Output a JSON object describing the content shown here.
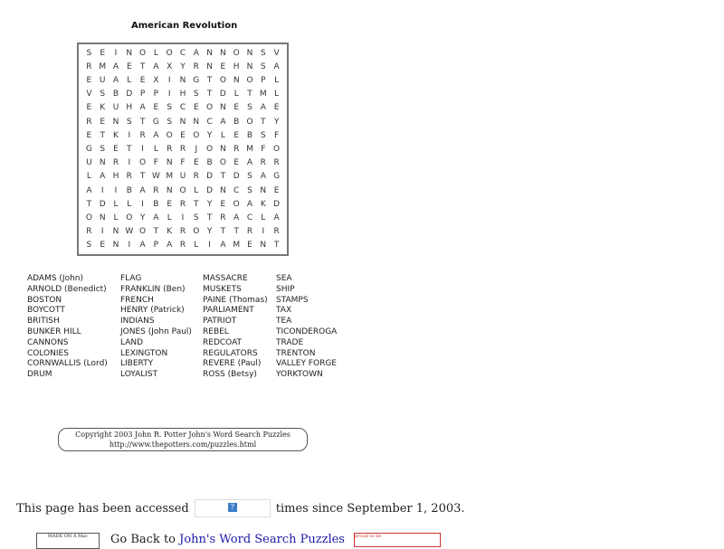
{
  "title": "American Revolution",
  "grid": [
    "SEINOLOCANNONSV",
    "RMAETAXYRNEHNSA",
    "EUALEXINGTONOPL",
    "VSBDPPIHSTDLTML",
    "EKUHAESCEONESAE",
    "RENSTGSNNCABOTY",
    "ETKIRAOEOYLEBSF",
    "GSETILRRJONRMFO",
    "UNRIOFNFEBOEARR",
    "LAHRTWMURDTDSAG",
    "AIIBARNOLDNCSNE",
    "TDLLIBERTYEOAKD",
    "ONLOYALISTRACLA",
    "RINWOTKROYTTRIR",
    "SENIAPARLIAMENT"
  ],
  "word_columns": [
    [
      "ADAMS (John)",
      "ARNOLD (Benedict)",
      "BOSTON",
      "BOYCOTT",
      "BRITISH",
      "BUNKER HILL",
      "CANNONS",
      "COLONIES",
      "CORNWALLIS (Lord)",
      "DRUM"
    ],
    [
      "FLAG",
      "FRANKLIN (Ben)",
      "FRENCH",
      "HENRY (Patrick)",
      "INDIANS",
      "JONES (John Paul)",
      "LAND",
      "LEXINGTON",
      "LIBERTY",
      "LOYALIST"
    ],
    [
      "MASSACRE",
      "MUSKETS",
      "PAINE (Thomas)",
      "PARLIAMENT",
      "PATRIOT",
      "REBEL",
      "REDCOAT",
      "REGULATORS",
      "REVERE (Paul)",
      "ROSS (Betsy)"
    ],
    [
      "SEA",
      "SHIP",
      "STAMPS",
      "TAX",
      "TEA",
      "TICONDEROGA",
      "TRADE",
      "TRENTON",
      "VALLEY FORGE",
      "YORKTOWN"
    ]
  ],
  "copyright": {
    "line1": "Copyright 2003 John R. Potter     John's Word Search Puzzles",
    "line2": "http://www.thepotters.com/puzzles.html"
  },
  "access": {
    "before": "This page has been accessed",
    "after": "times since September 1, 2003.",
    "counter_icon": "?"
  },
  "footer": {
    "badge": "MADE ON A Mac",
    "prefix": "Go Back to",
    "link": "John's Word Search Puzzles",
    "proud": "proud to be"
  }
}
